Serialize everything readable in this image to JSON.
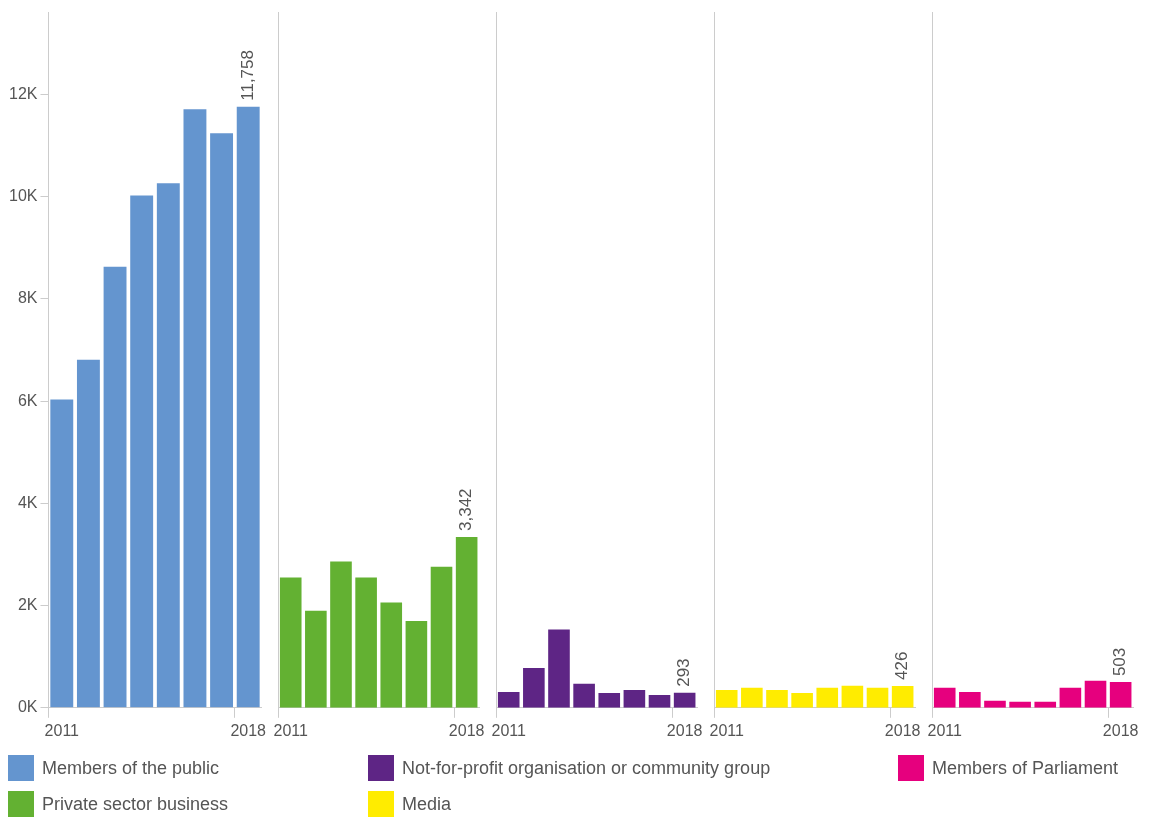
{
  "chart_data": [
    {
      "type": "bar",
      "categories": [
        "2011",
        null,
        null,
        null,
        null,
        null,
        null,
        "2018"
      ],
      "series": [
        {
          "name": "Members of the public",
          "color": "#6495cf",
          "values": [
            6030,
            6810,
            8630,
            10020,
            10260,
            11710,
            11240,
            11758
          ],
          "value_labels": [
            null,
            null,
            null,
            null,
            null,
            null,
            null,
            "11,758"
          ]
        }
      ],
      "ylim": [
        0,
        13600
      ],
      "yticks": [
        {
          "value": 0,
          "label": "0K"
        },
        {
          "value": 2000,
          "label": "2K"
        },
        {
          "value": 4000,
          "label": "4K"
        },
        {
          "value": 6000,
          "label": "6K"
        },
        {
          "value": 8000,
          "label": "8K"
        },
        {
          "value": 10000,
          "label": "10K"
        },
        {
          "value": 12000,
          "label": "12K"
        }
      ],
      "grid": false,
      "legend": "bottom"
    },
    {
      "type": "bar",
      "categories": [
        "2011",
        null,
        null,
        null,
        null,
        null,
        null,
        "2018"
      ],
      "series": [
        {
          "name": "Private sector business",
          "color": "#63b132",
          "values": [
            2550,
            1900,
            2860,
            2550,
            2060,
            1700,
            2760,
            3342
          ],
          "value_labels": [
            null,
            null,
            null,
            null,
            null,
            null,
            null,
            "3,342"
          ]
        }
      ],
      "ylim": [
        0,
        13600
      ],
      "grid": false,
      "legend": "bottom",
      "tick_labels": "x"
    },
    {
      "type": "bar",
      "categories": [
        "2011",
        null,
        null,
        null,
        null,
        null,
        null,
        "2018"
      ],
      "series": [
        {
          "name": "Not-for-profit organisation or community group",
          "color": "#5e2585",
          "values": [
            310,
            780,
            1530,
            470,
            290,
            350,
            250,
            293
          ],
          "value_labels": [
            null,
            null,
            null,
            null,
            null,
            null,
            null,
            "293"
          ]
        }
      ],
      "ylim": [
        0,
        13600
      ],
      "grid": false,
      "legend": "bottom",
      "tick_labels": "x"
    },
    {
      "type": "bar",
      "categories": [
        "2011",
        null,
        null,
        null,
        null,
        null,
        null,
        "2018"
      ],
      "series": [
        {
          "name": "Media",
          "color": "#ffec00",
          "values": [
            350,
            390,
            350,
            290,
            390,
            430,
            390,
            426
          ],
          "value_labels": [
            null,
            null,
            null,
            null,
            null,
            null,
            null,
            "426"
          ]
        }
      ],
      "ylim": [
        0,
        13600
      ],
      "grid": false,
      "legend": "bottom",
      "tick_labels": "x"
    },
    {
      "type": "bar",
      "categories": [
        "2011",
        null,
        null,
        null,
        null,
        null,
        null,
        "2018"
      ],
      "series": [
        {
          "name": "Members of Parliament",
          "color": "#e6007e",
          "values": [
            390,
            310,
            140,
            120,
            120,
            390,
            530,
            503
          ],
          "value_labels": [
            null,
            null,
            null,
            null,
            null,
            null,
            null,
            "503"
          ]
        }
      ],
      "ylim": [
        0,
        13600
      ],
      "grid": false,
      "legend": "bottom",
      "tick_labels": "x"
    }
  ]
}
